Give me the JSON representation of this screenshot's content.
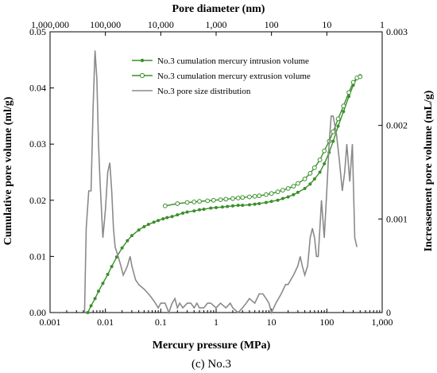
{
  "chart_data": {
    "type": "line",
    "caption": "(c) No.3",
    "xlabel": "Mercury pressure (MPa)",
    "x2label": "Pore diameter (nm)",
    "ylabel": "Cumulative pore volume (ml/g)",
    "y2label": "Increasement pore volume (mL/g)",
    "xscale": "log",
    "xlim": [
      0.001,
      1000
    ],
    "ylim": [
      0,
      0.05
    ],
    "y2lim": [
      0,
      0.003
    ],
    "x2lim_nm": [
      1000000,
      1
    ],
    "x_ticks": [
      {
        "v": 0.001,
        "label": "0.001"
      },
      {
        "v": 0.01,
        "label": "0.01"
      },
      {
        "v": 0.1,
        "label": "0.1"
      },
      {
        "v": 1,
        "label": "1"
      },
      {
        "v": 10,
        "label": "10"
      },
      {
        "v": 100,
        "label": "100"
      },
      {
        "v": 1000,
        "label": "1,000"
      }
    ],
    "x2_ticks": [
      {
        "v": 1000000,
        "label": "1,000,000"
      },
      {
        "v": 100000,
        "label": "100,000"
      },
      {
        "v": 10000,
        "label": "10,000"
      },
      {
        "v": 1000,
        "label": "1,000"
      },
      {
        "v": 100,
        "label": "100"
      },
      {
        "v": 10,
        "label": "10"
      },
      {
        "v": 1,
        "label": "1"
      }
    ],
    "y_ticks": [
      {
        "v": 0,
        "label": "0.00"
      },
      {
        "v": 0.01,
        "label": "0.01"
      },
      {
        "v": 0.02,
        "label": "0.02"
      },
      {
        "v": 0.03,
        "label": "0.03"
      },
      {
        "v": 0.04,
        "label": "0.04"
      },
      {
        "v": 0.05,
        "label": "0.05"
      }
    ],
    "y2_ticks": [
      {
        "v": 0,
        "label": "0"
      },
      {
        "v": 0.001,
        "label": "0.001"
      },
      {
        "v": 0.002,
        "label": "0.002"
      },
      {
        "v": 0.003,
        "label": "0.003"
      }
    ],
    "legend_position": "top-center",
    "grid": false,
    "series": [
      {
        "name": "No.3 cumulation mercury intrusion volume",
        "axis": "left",
        "color": "#3a8f2a",
        "marker": "small-circle",
        "x": [
          0.0048,
          0.0055,
          0.0065,
          0.0075,
          0.009,
          0.011,
          0.013,
          0.016,
          0.02,
          0.025,
          0.03,
          0.04,
          0.05,
          0.06,
          0.075,
          0.09,
          0.11,
          0.13,
          0.16,
          0.2,
          0.25,
          0.3,
          0.4,
          0.5,
          0.6,
          0.8,
          1,
          1.3,
          1.6,
          2,
          2.5,
          3,
          4,
          5,
          6,
          8,
          10,
          13,
          16,
          20,
          25,
          30,
          40,
          50,
          60,
          75,
          90,
          110,
          130,
          160,
          200,
          250,
          300,
          350,
          400
        ],
        "y": [
          0.0,
          0.0012,
          0.0025,
          0.0038,
          0.0052,
          0.0068,
          0.0082,
          0.0099,
          0.0115,
          0.0128,
          0.0137,
          0.0147,
          0.0153,
          0.0157,
          0.0161,
          0.0164,
          0.0167,
          0.0169,
          0.0171,
          0.0174,
          0.0177,
          0.0179,
          0.0181,
          0.0183,
          0.0184,
          0.0186,
          0.0187,
          0.0188,
          0.0189,
          0.019,
          0.0191,
          0.0191,
          0.0192,
          0.0193,
          0.0194,
          0.0196,
          0.0198,
          0.02,
          0.0203,
          0.0206,
          0.021,
          0.0214,
          0.0221,
          0.0229,
          0.0238,
          0.025,
          0.0265,
          0.0285,
          0.0305,
          0.0332,
          0.0358,
          0.0385,
          0.0405,
          0.0418,
          0.0422
        ]
      },
      {
        "name": "No.3 cumulation mercury extrusion volume",
        "axis": "left",
        "color": "#3a8f2a",
        "marker": "open-circle",
        "x": [
          0.12,
          0.2,
          0.3,
          0.4,
          0.5,
          0.7,
          0.9,
          1.2,
          1.5,
          2,
          2.5,
          3,
          4,
          5,
          6,
          8,
          10,
          13,
          16,
          20,
          25,
          30,
          40,
          50,
          60,
          75,
          90,
          110,
          130,
          160,
          200,
          250,
          300,
          350,
          400
        ],
        "y": [
          0.019,
          0.0194,
          0.0196,
          0.0197,
          0.0198,
          0.0199,
          0.02,
          0.0201,
          0.0202,
          0.0203,
          0.0204,
          0.0205,
          0.0206,
          0.0207,
          0.0208,
          0.021,
          0.0212,
          0.0215,
          0.0218,
          0.0221,
          0.0225,
          0.023,
          0.0238,
          0.0248,
          0.0258,
          0.0272,
          0.0288,
          0.0305,
          0.0322,
          0.0345,
          0.0368,
          0.0392,
          0.041,
          0.0418,
          0.042
        ]
      },
      {
        "name": "No.3 pore size distribution",
        "axis": "right",
        "color": "#8a8a8a",
        "marker": "none",
        "x": [
          0.0042,
          0.0045,
          0.005,
          0.0055,
          0.006,
          0.0065,
          0.007,
          0.0075,
          0.008,
          0.009,
          0.01,
          0.011,
          0.012,
          0.013,
          0.014,
          0.015,
          0.017,
          0.019,
          0.021,
          0.023,
          0.025,
          0.028,
          0.03,
          0.035,
          0.04,
          0.05,
          0.06,
          0.07,
          0.08,
          0.09,
          0.1,
          0.12,
          0.14,
          0.16,
          0.18,
          0.2,
          0.22,
          0.25,
          0.3,
          0.35,
          0.4,
          0.45,
          0.5,
          0.6,
          0.7,
          0.8,
          1.0,
          1.2,
          1.5,
          1.8,
          2.0,
          2.5,
          3.0,
          3.5,
          4.0,
          5.0,
          6.0,
          7.0,
          8.0,
          9.0,
          10,
          12,
          15,
          18,
          20,
          25,
          30,
          33,
          36,
          40,
          45,
          50,
          55,
          60,
          65,
          70,
          75,
          80,
          90,
          100,
          110,
          120,
          130,
          150,
          170,
          190,
          210,
          230,
          260,
          290,
          320,
          350
        ],
        "y": [
          0.0,
          0.0009,
          0.0013,
          0.0013,
          0.0022,
          0.0028,
          0.0025,
          0.0018,
          0.0014,
          0.0008,
          0.0011,
          0.0015,
          0.0016,
          0.0013,
          0.0009,
          0.0007,
          0.0006,
          0.0005,
          0.0004,
          0.00045,
          0.0005,
          0.0006,
          0.0005,
          0.00035,
          0.0003,
          0.00025,
          0.0002,
          0.00015,
          0.0001,
          5e-05,
          0.0001,
          0.0001,
          0.0,
          0.0001,
          0.00015,
          5e-05,
          0.0001,
          5e-05,
          0.0001,
          0.0001,
          5e-05,
          0.0001,
          5e-05,
          5e-05,
          0.0001,
          0.0001,
          5e-05,
          0.0001,
          5e-05,
          0.0001,
          5e-05,
          0.0,
          5e-05,
          0.0001,
          0.00015,
          0.0001,
          0.0002,
          0.0002,
          0.00015,
          0.0001,
          0.0,
          0.0001,
          0.0002,
          0.0003,
          0.0003,
          0.0004,
          0.0005,
          0.0006,
          0.0005,
          0.0004,
          0.0005,
          0.0008,
          0.0009,
          0.0008,
          0.0006,
          0.0006,
          0.0009,
          0.0012,
          0.0008,
          0.0013,
          0.0018,
          0.0021,
          0.0021,
          0.0019,
          0.0016,
          0.0013,
          0.0015,
          0.0018,
          0.0014,
          0.0018,
          0.0008,
          0.0007
        ]
      }
    ]
  }
}
